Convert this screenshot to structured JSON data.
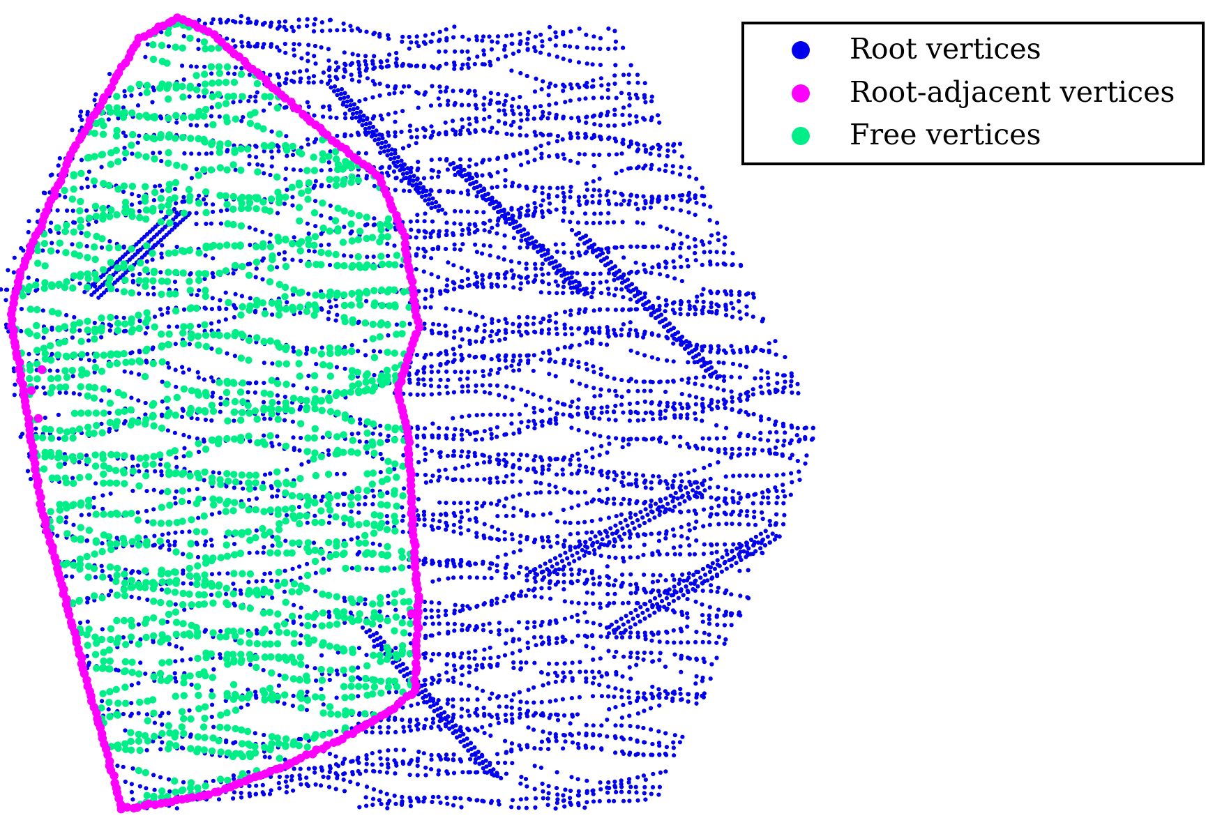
{
  "chart_data": {
    "type": "scatter",
    "title": "",
    "xlabel": "",
    "ylabel": "",
    "grid": false,
    "axes_visible": false,
    "legend_position": "top-right",
    "series": [
      {
        "name": "Root vertices",
        "color": "#0000ee",
        "marker": "filled-circle",
        "role": "root"
      },
      {
        "name": "Root-adjacent vertices",
        "color": "#ff00ff",
        "marker": "filled-circle",
        "role": "adjacent"
      },
      {
        "name": "Free vertices",
        "color": "#00ee88",
        "marker": "filled-circle",
        "role": "free"
      }
    ]
  },
  "colors": {
    "root": "#0000ee",
    "adjacent": "#ff00ff",
    "free": "#00ee88",
    "background": "#ffffff"
  }
}
